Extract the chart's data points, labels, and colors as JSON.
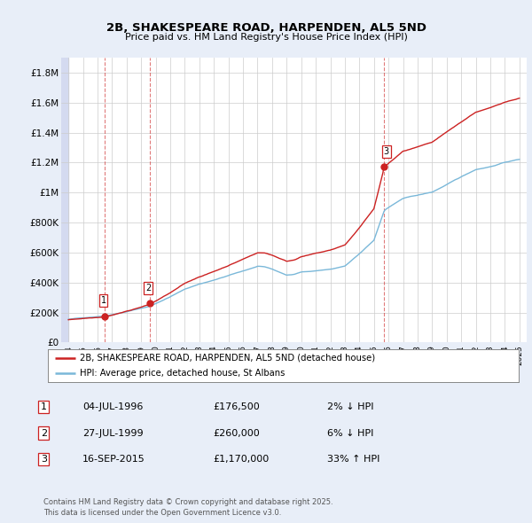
{
  "title": "2B, SHAKESPEARE ROAD, HARPENDEN, AL5 5ND",
  "subtitle": "Price paid vs. HM Land Registry's House Price Index (HPI)",
  "xlim": [
    1993.5,
    2025.5
  ],
  "ylim": [
    0,
    1900000
  ],
  "yticks": [
    0,
    200000,
    400000,
    600000,
    800000,
    1000000,
    1200000,
    1400000,
    1600000,
    1800000
  ],
  "ytick_labels": [
    "£0",
    "£200K",
    "£400K",
    "£600K",
    "£800K",
    "£1M",
    "£1.2M",
    "£1.4M",
    "£1.6M",
    "£1.8M"
  ],
  "xticks": [
    1994,
    1995,
    1996,
    1997,
    1998,
    1999,
    2000,
    2001,
    2002,
    2003,
    2004,
    2005,
    2006,
    2007,
    2008,
    2009,
    2010,
    2011,
    2012,
    2013,
    2014,
    2015,
    2016,
    2017,
    2018,
    2019,
    2020,
    2021,
    2022,
    2023,
    2024,
    2025
  ],
  "sale_dates": [
    1996.5,
    1999.58,
    2015.71
  ],
  "sale_prices": [
    176500,
    260000,
    1170000
  ],
  "sale_labels": [
    "1",
    "2",
    "3"
  ],
  "hpi_color": "#7ab8d9",
  "sale_color": "#cc2222",
  "vline_color": "#cc2222",
  "legend_sale_label": "2B, SHAKESPEARE ROAD, HARPENDEN, AL5 5ND (detached house)",
  "legend_hpi_label": "HPI: Average price, detached house, St Albans",
  "table_rows": [
    [
      "1",
      "04-JUL-1996",
      "£176,500",
      "2% ↓ HPI"
    ],
    [
      "2",
      "27-JUL-1999",
      "£260,000",
      "6% ↓ HPI"
    ],
    [
      "3",
      "16-SEP-2015",
      "£1,170,000",
      "33% ↑ HPI"
    ]
  ],
  "footnote": "Contains HM Land Registry data © Crown copyright and database right 2025.\nThis data is licensed under the Open Government Licence v3.0.",
  "bg_color": "#e8eef8",
  "plot_bg_color": "#ffffff",
  "grid_color": "#cccccc",
  "hatch_left_color": "#d4daf0"
}
